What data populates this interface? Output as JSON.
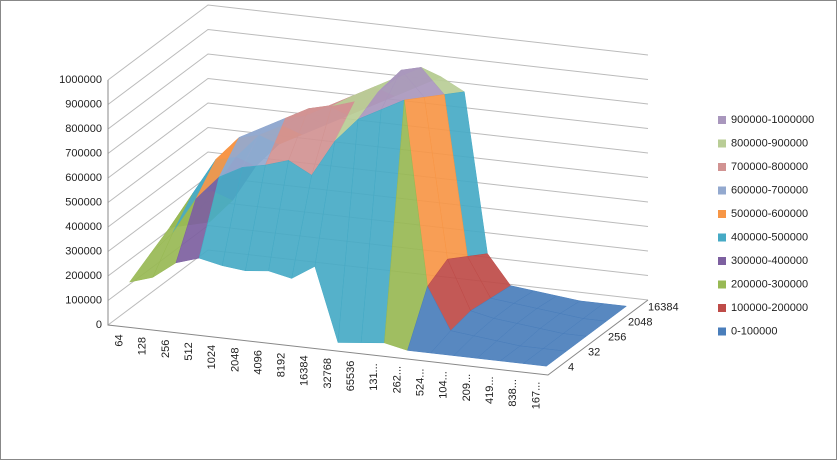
{
  "chart_data": {
    "type": "surface",
    "categories": [
      "64",
      "128",
      "256",
      "512",
      "1024",
      "2048",
      "4096",
      "8192",
      "16384",
      "32768",
      "65536",
      "131...",
      "262...",
      "524...",
      "104...",
      "209...",
      "419...",
      "838...",
      "167..."
    ],
    "series": [
      {
        "name": "4",
        "values": [
          150000,
          180000,
          250000,
          280000,
          260000,
          250000,
          260000,
          240000,
          300000,
          0,
          10000,
          20000,
          0,
          0,
          0,
          0,
          0,
          0,
          0
        ]
      },
      {
        "name": "32",
        "values": [
          200000,
          300000,
          450000,
          550000,
          600000,
          620000,
          650000,
          600000,
          750000,
          850000,
          900000,
          950000,
          200000,
          30000,
          20000,
          10000,
          0,
          0,
          0
        ]
      },
      {
        "name": "256",
        "values": [
          250000,
          400000,
          550000,
          650000,
          700000,
          750000,
          800000,
          820000,
          850000,
          900000,
          1000000,
          900000,
          250000,
          50000,
          30000,
          20000,
          10000,
          0,
          0
        ]
      },
      {
        "name": "2048",
        "values": [
          200000,
          350000,
          500000,
          600000,
          650000,
          700000,
          750000,
          800000,
          850000,
          900000,
          950000,
          850000,
          200000,
          40000,
          30000,
          20000,
          10000,
          0,
          0
        ]
      },
      {
        "name": "16384",
        "values": [
          150000,
          250000,
          400000,
          500000,
          550000,
          600000,
          650000,
          700000,
          750000,
          800000,
          850000,
          800000,
          150000,
          30000,
          20000,
          10000,
          0,
          0,
          0
        ]
      }
    ],
    "ylim": [
      0,
      1000000
    ],
    "yticks": [
      0,
      100000,
      200000,
      300000,
      400000,
      500000,
      600000,
      700000,
      800000,
      900000,
      1000000
    ],
    "band_colors": [
      "#4a7ebb",
      "#be4b48",
      "#98b954",
      "#7d60a0",
      "#46aac5",
      "#f79646",
      "#93a9cf",
      "#d19392",
      "#b9cd96",
      "#a997bd"
    ],
    "legend": [
      "0-100000",
      "100000-200000",
      "200000-300000",
      "300000-400000",
      "400000-500000",
      "500000-600000",
      "600000-700000",
      "700000-800000",
      "800000-900000",
      "900000-1000000"
    ],
    "grid": true
  }
}
